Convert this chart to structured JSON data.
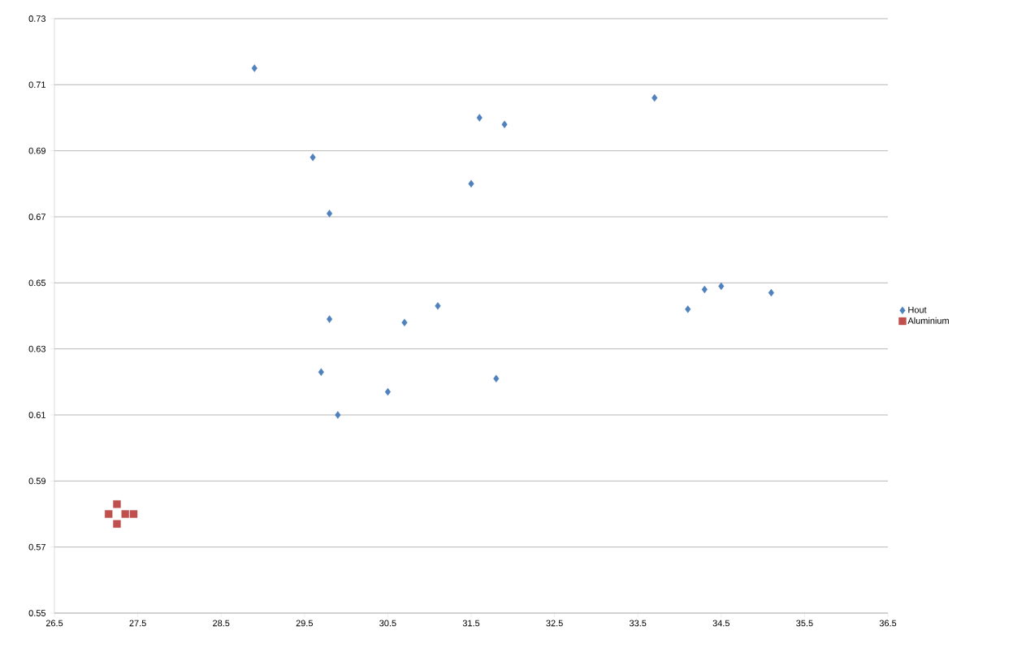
{
  "chart_data": {
    "type": "scatter",
    "series": [
      {
        "name": "Hout",
        "color": "#4f81bd",
        "marker": "diamond",
        "x": [
          28.9,
          29.6,
          29.8,
          29.8,
          29.7,
          29.9,
          30.5,
          30.7,
          31.1,
          31.5,
          31.6,
          31.8,
          31.9,
          33.7,
          34.1,
          34.3,
          34.5,
          35.1
        ],
        "values": [
          0.715,
          0.688,
          0.671,
          0.639,
          0.623,
          0.61,
          0.617,
          0.638,
          0.643,
          0.68,
          0.7,
          0.621,
          0.698,
          0.706,
          0.642,
          0.648,
          0.649,
          0.647
        ]
      },
      {
        "name": "Aluminium",
        "color": "#c0504d",
        "marker": "square",
        "x": [
          27.15,
          27.25,
          27.25,
          27.35,
          27.45
        ],
        "values": [
          0.58,
          0.583,
          0.577,
          0.58,
          0.58
        ]
      }
    ],
    "xlim": [
      26.5,
      36.5
    ],
    "xticks": [
      26.5,
      27.5,
      28.5,
      29.5,
      30.5,
      31.5,
      32.5,
      33.5,
      34.5,
      35.5,
      36.5
    ],
    "ylim": [
      0.55,
      0.73
    ],
    "yticks": [
      0.55,
      0.57,
      0.59,
      0.61,
      0.63,
      0.65,
      0.67,
      0.69,
      0.71,
      0.73
    ],
    "grid": "y",
    "legend": "right"
  }
}
